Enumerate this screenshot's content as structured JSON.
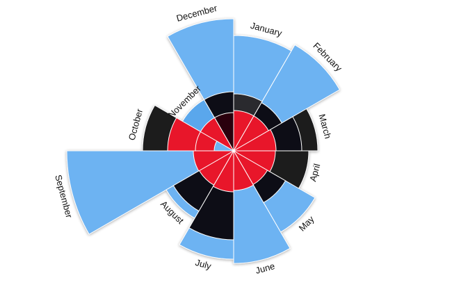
{
  "chart_data": {
    "type": "polar-area",
    "title": "",
    "categories": [
      "January",
      "February",
      "March",
      "April",
      "May",
      "June",
      "July",
      "August",
      "September",
      "October",
      "November",
      "December"
    ],
    "series": [
      {
        "values": [
          166,
          176,
          0,
          0,
          135,
          162,
          156,
          112,
          240,
          0,
          0,
          190
        ],
        "color": "#6db3f2"
      },
      {
        "values": [
          0,
          0,
          121,
          108,
          0,
          0,
          0,
          0,
          0,
          131,
          0,
          0
        ],
        "color": "#1a1a1e"
      },
      {
        "values": [
          0,
          0,
          0,
          0,
          0,
          0,
          0,
          0,
          0,
          0,
          85,
          0
        ],
        "color": "#5aa7ec"
      },
      {
        "values": [
          82,
          0,
          0,
          0,
          0,
          0,
          0,
          0,
          0,
          0,
          0,
          0
        ],
        "color": "#2a2a2e"
      },
      {
        "values": [
          0,
          80,
          98,
          0,
          86,
          0,
          128,
          100,
          0,
          0,
          0,
          85
        ],
        "color": "#0e1117"
      },
      {
        "values": [
          0,
          0,
          0,
          0,
          0,
          0,
          0,
          0,
          0,
          95,
          0,
          0
        ],
        "color": "#e8192c"
      },
      {
        "values": [
          0,
          0,
          0,
          0,
          0,
          0,
          0,
          0,
          0,
          0,
          0,
          55
        ],
        "color": "#2a0509"
      },
      {
        "values": [
          58,
          58,
          61,
          60,
          56,
          57,
          59,
          57,
          58,
          55,
          55,
          0
        ],
        "color": "#e8192c"
      },
      {
        "values": [
          0,
          0,
          0,
          0,
          0,
          0,
          0,
          0,
          0,
          28,
          0,
          0
        ],
        "color": "#6db3f2"
      }
    ],
    "legend": false,
    "grid": false
  }
}
